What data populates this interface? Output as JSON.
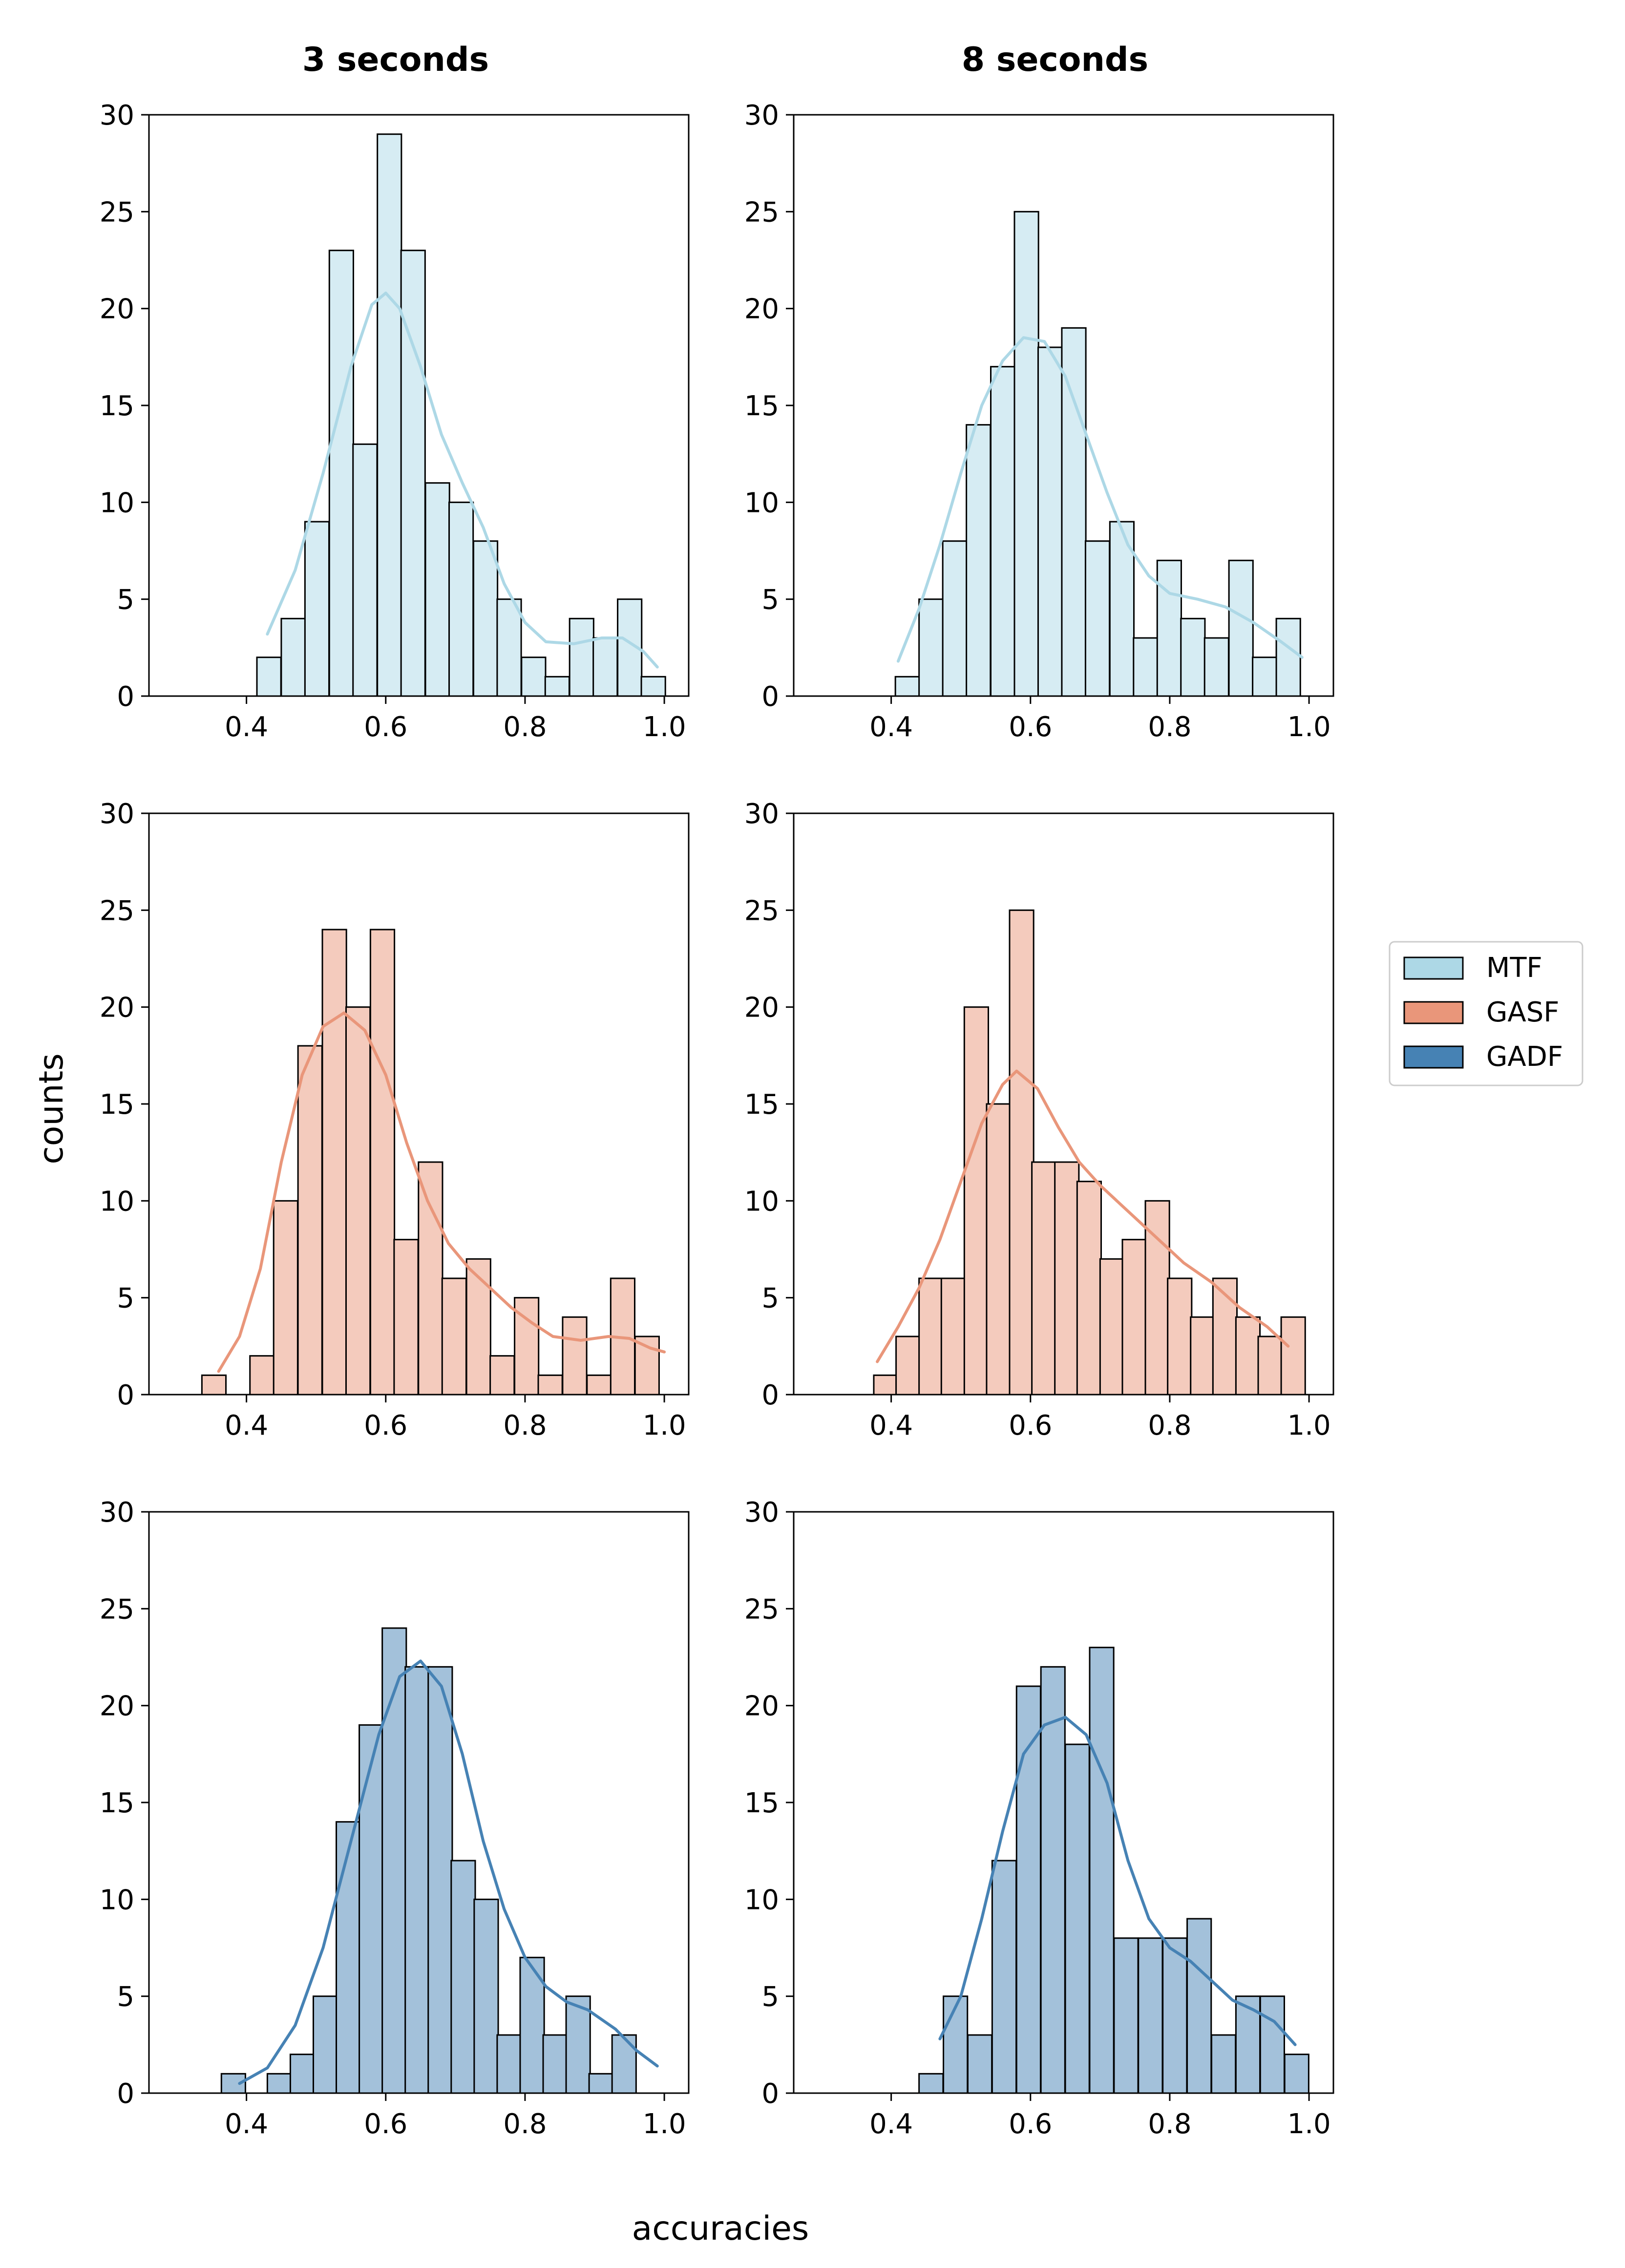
{
  "chart_data": {
    "type": "bar",
    "layout": "3x2 grid of histograms with KDE curves",
    "column_titles": [
      "3 seconds",
      "8 seconds"
    ],
    "xlabel": "accuracies",
    "ylabel": "counts",
    "xlim": [
      0.26,
      1.035
    ],
    "ylim": [
      0,
      30
    ],
    "x_ticks": [
      "0.4",
      "0.6",
      "0.8",
      "1.0"
    ],
    "y_ticks": [
      "0",
      "5",
      "10",
      "15",
      "20",
      "25",
      "30"
    ],
    "bin_width": 0.0345,
    "legend": {
      "placement": "center-right",
      "entries": [
        {
          "name": "MTF",
          "color": "#add8e6"
        },
        {
          "name": "GASF",
          "color": "#e9967a"
        },
        {
          "name": "GADF",
          "color": "#4682b4"
        }
      ]
    },
    "subplots": [
      {
        "column": "3 seconds",
        "series": "MTF",
        "color": "#add8e6",
        "bin_starts": [
          0.415,
          0.45,
          0.484,
          0.519,
          0.553,
          0.588,
          0.622,
          0.657,
          0.691,
          0.726,
          0.76,
          0.795,
          0.829,
          0.864,
          0.898,
          0.933,
          0.967
        ],
        "counts": [
          2,
          4,
          9,
          23,
          13,
          29,
          23,
          11,
          10,
          8,
          5,
          2,
          1,
          4,
          3,
          5,
          1
        ],
        "kde": [
          [
            0.43,
            3.2
          ],
          [
            0.47,
            6.5
          ],
          [
            0.51,
            11.5
          ],
          [
            0.55,
            17.0
          ],
          [
            0.58,
            20.2
          ],
          [
            0.6,
            20.8
          ],
          [
            0.62,
            20.0
          ],
          [
            0.65,
            17.0
          ],
          [
            0.68,
            13.5
          ],
          [
            0.71,
            11.0
          ],
          [
            0.74,
            8.7
          ],
          [
            0.77,
            5.8
          ],
          [
            0.8,
            3.8
          ],
          [
            0.83,
            2.8
          ],
          [
            0.87,
            2.7
          ],
          [
            0.91,
            3.0
          ],
          [
            0.94,
            3.0
          ],
          [
            0.97,
            2.3
          ],
          [
            0.99,
            1.5
          ]
        ]
      },
      {
        "column": "8 seconds",
        "series": "MTF",
        "color": "#add8e6",
        "bin_starts": [
          0.406,
          0.44,
          0.474,
          0.508,
          0.543,
          0.577,
          0.611,
          0.645,
          0.679,
          0.714,
          0.748,
          0.782,
          0.816,
          0.85,
          0.885,
          0.919,
          0.953
        ],
        "counts": [
          1,
          5,
          8,
          14,
          17,
          25,
          18,
          19,
          8,
          9,
          3,
          7,
          4,
          3,
          7,
          2,
          4
        ],
        "kde": [
          [
            0.41,
            1.8
          ],
          [
            0.44,
            4.5
          ],
          [
            0.47,
            7.8
          ],
          [
            0.5,
            11.5
          ],
          [
            0.53,
            15.0
          ],
          [
            0.56,
            17.3
          ],
          [
            0.59,
            18.5
          ],
          [
            0.62,
            18.3
          ],
          [
            0.65,
            16.5
          ],
          [
            0.68,
            13.5
          ],
          [
            0.71,
            10.5
          ],
          [
            0.74,
            7.8
          ],
          [
            0.77,
            6.2
          ],
          [
            0.8,
            5.3
          ],
          [
            0.84,
            5.0
          ],
          [
            0.88,
            4.6
          ],
          [
            0.92,
            3.8
          ],
          [
            0.96,
            2.8
          ],
          [
            0.99,
            2.0
          ]
        ]
      },
      {
        "column": "3 seconds",
        "series": "GASF",
        "color": "#e9967a",
        "bin_starts": [
          0.336,
          0.37,
          0.405,
          0.439,
          0.474,
          0.509,
          0.543,
          0.578,
          0.612,
          0.647,
          0.681,
          0.716,
          0.75,
          0.785,
          0.819,
          0.854,
          0.889,
          0.923,
          0.958
        ],
        "counts": [
          1,
          0,
          2,
          10,
          18,
          24,
          20,
          24,
          8,
          12,
          6,
          7,
          2,
          5,
          1,
          4,
          1,
          6,
          3
        ],
        "kde": [
          [
            0.36,
            1.2
          ],
          [
            0.39,
            3.0
          ],
          [
            0.42,
            6.5
          ],
          [
            0.45,
            12.0
          ],
          [
            0.48,
            16.5
          ],
          [
            0.51,
            19.0
          ],
          [
            0.54,
            19.7
          ],
          [
            0.57,
            18.8
          ],
          [
            0.6,
            16.5
          ],
          [
            0.63,
            13.0
          ],
          [
            0.66,
            10.0
          ],
          [
            0.69,
            7.8
          ],
          [
            0.72,
            6.5
          ],
          [
            0.75,
            5.5
          ],
          [
            0.78,
            4.5
          ],
          [
            0.81,
            3.7
          ],
          [
            0.84,
            3.0
          ],
          [
            0.88,
            2.8
          ],
          [
            0.92,
            3.0
          ],
          [
            0.95,
            2.9
          ],
          [
            0.98,
            2.4
          ],
          [
            1.0,
            2.2
          ]
        ]
      },
      {
        "column": "8 seconds",
        "series": "GASF",
        "color": "#e9967a",
        "bin_starts": [
          0.375,
          0.407,
          0.44,
          0.472,
          0.505,
          0.537,
          0.57,
          0.602,
          0.635,
          0.667,
          0.7,
          0.732,
          0.765,
          0.797,
          0.83,
          0.862,
          0.895,
          0.927,
          0.96
        ],
        "counts": [
          1,
          3,
          6,
          6,
          20,
          15,
          25,
          12,
          12,
          11,
          7,
          8,
          10,
          6,
          4,
          6,
          4,
          3,
          4
        ],
        "kde": [
          [
            0.38,
            1.7
          ],
          [
            0.41,
            3.5
          ],
          [
            0.44,
            5.5
          ],
          [
            0.47,
            8.0
          ],
          [
            0.5,
            11.0
          ],
          [
            0.53,
            14.0
          ],
          [
            0.56,
            16.0
          ],
          [
            0.58,
            16.7
          ],
          [
            0.61,
            15.8
          ],
          [
            0.64,
            13.8
          ],
          [
            0.67,
            12.0
          ],
          [
            0.7,
            10.8
          ],
          [
            0.73,
            9.8
          ],
          [
            0.76,
            8.8
          ],
          [
            0.79,
            7.8
          ],
          [
            0.82,
            6.8
          ],
          [
            0.86,
            5.8
          ],
          [
            0.9,
            4.5
          ],
          [
            0.94,
            3.5
          ],
          [
            0.97,
            2.5
          ]
        ]
      },
      {
        "column": "3 seconds",
        "series": "GADF",
        "color": "#4682b4",
        "bin_starts": [
          0.364,
          0.397,
          0.43,
          0.463,
          0.496,
          0.529,
          0.562,
          0.595,
          0.628,
          0.661,
          0.694,
          0.727,
          0.76,
          0.793,
          0.826,
          0.859,
          0.892,
          0.925,
          0.958
        ],
        "counts": [
          1,
          0,
          1,
          2,
          5,
          14,
          19,
          24,
          22,
          22,
          12,
          10,
          3,
          7,
          3,
          5,
          1,
          3,
          0
        ],
        "kde": [
          [
            0.39,
            0.5
          ],
          [
            0.43,
            1.3
          ],
          [
            0.47,
            3.5
          ],
          [
            0.51,
            7.5
          ],
          [
            0.55,
            13.0
          ],
          [
            0.59,
            18.5
          ],
          [
            0.62,
            21.5
          ],
          [
            0.65,
            22.3
          ],
          [
            0.68,
            21.0
          ],
          [
            0.71,
            17.5
          ],
          [
            0.74,
            13.0
          ],
          [
            0.77,
            9.5
          ],
          [
            0.8,
            7.0
          ],
          [
            0.83,
            5.5
          ],
          [
            0.86,
            4.7
          ],
          [
            0.89,
            4.3
          ],
          [
            0.93,
            3.3
          ],
          [
            0.96,
            2.2
          ],
          [
            0.99,
            1.4
          ]
        ]
      },
      {
        "column": "8 seconds",
        "series": "GADF",
        "color": "#4682b4",
        "bin_starts": [
          0.44,
          0.475,
          0.51,
          0.545,
          0.58,
          0.615,
          0.65,
          0.685,
          0.72,
          0.755,
          0.79,
          0.825,
          0.86,
          0.895,
          0.93,
          0.965
        ],
        "counts": [
          1,
          5,
          3,
          12,
          21,
          22,
          18,
          23,
          8,
          8,
          8,
          9,
          3,
          5,
          5,
          2
        ],
        "kde": [
          [
            0.47,
            2.8
          ],
          [
            0.5,
            5.0
          ],
          [
            0.53,
            9.0
          ],
          [
            0.56,
            13.5
          ],
          [
            0.59,
            17.5
          ],
          [
            0.62,
            19.0
          ],
          [
            0.65,
            19.4
          ],
          [
            0.68,
            18.5
          ],
          [
            0.71,
            16.0
          ],
          [
            0.74,
            12.0
          ],
          [
            0.77,
            9.0
          ],
          [
            0.8,
            7.5
          ],
          [
            0.83,
            6.8
          ],
          [
            0.86,
            5.8
          ],
          [
            0.89,
            4.8
          ],
          [
            0.92,
            4.3
          ],
          [
            0.95,
            3.7
          ],
          [
            0.98,
            2.5
          ]
        ]
      }
    ]
  }
}
